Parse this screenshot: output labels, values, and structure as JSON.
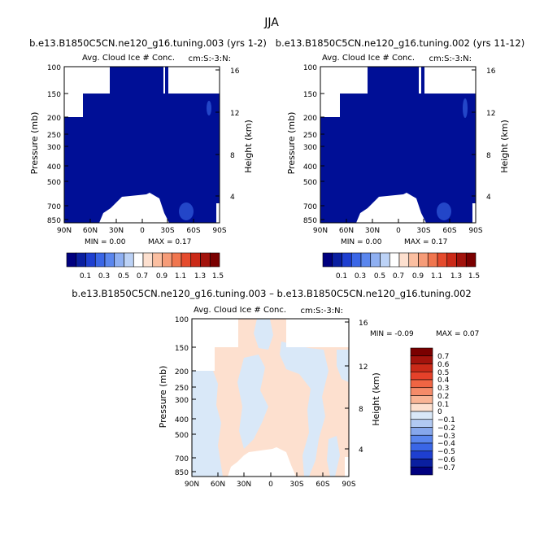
{
  "page_title": "JJA",
  "chart_data": [
    {
      "type": "heatmap",
      "title": "b.e13.B1850C5CN.ne120_g16.tuning.003 (yrs 1-2)",
      "subtitle_left": "Avg. Cloud Ice # Conc.",
      "subtitle_right": "cm:S:-3:N:",
      "xlabel": "",
      "ylabel": "Pressure (mb)",
      "ylabel_right": "Height (km)",
      "x_ticks": [
        "90N",
        "60N",
        "30N",
        "0",
        "30S",
        "60S",
        "90S"
      ],
      "y_ticks": [
        "100",
        "150",
        "200",
        "250",
        "300",
        "400",
        "500",
        "700",
        "850"
      ],
      "y_ticks_right": [
        "16",
        "12",
        "8",
        "4"
      ],
      "xlim": [
        90,
        -90
      ],
      "ylim": [
        100,
        900
      ],
      "min_label": "MIN =    0.00",
      "max_label": "MAX =    0.17",
      "min": 0.0,
      "max": 0.17,
      "fill_value": 0.05,
      "colorbar_labels": [
        "0.1",
        "0.3",
        "0.5",
        "0.7",
        "0.9",
        "1.1",
        "1.3",
        "1.5"
      ]
    },
    {
      "type": "heatmap",
      "title": "b.e13.B1850C5CN.ne120_g16.tuning.002 (yrs 11-12)",
      "subtitle_left": "Avg. Cloud Ice # Conc.",
      "subtitle_right": "cm:S:-3:N:",
      "xlabel": "",
      "ylabel": "Pressure (mb)",
      "ylabel_right": "Height (km)",
      "x_ticks": [
        "90N",
        "60N",
        "30N",
        "0",
        "30S",
        "60S",
        "90S"
      ],
      "y_ticks": [
        "100",
        "150",
        "200",
        "250",
        "300",
        "400",
        "500",
        "700",
        "850"
      ],
      "y_ticks_right": [
        "16",
        "12",
        "8",
        "4"
      ],
      "xlim": [
        90,
        -90
      ],
      "ylim": [
        100,
        900
      ],
      "min_label": "MIN =    0.00",
      "max_label": "MAX =    0.17",
      "min": 0.0,
      "max": 0.17,
      "fill_value": 0.05,
      "colorbar_labels": [
        "0.1",
        "0.3",
        "0.5",
        "0.7",
        "0.9",
        "1.1",
        "1.3",
        "1.5"
      ]
    },
    {
      "type": "heatmap",
      "title": "b.e13.B1850C5CN.ne120_g16.tuning.003 – b.e13.B1850C5CN.ne120_g16.tuning.002",
      "subtitle_left": "Avg. Cloud Ice # Conc.",
      "subtitle_right": "cm:S:-3:N:",
      "xlabel": "",
      "ylabel": "Pressure (mb)",
      "ylabel_right": "Height (km)",
      "x_ticks": [
        "90N",
        "60N",
        "30N",
        "0",
        "30S",
        "60S",
        "90S"
      ],
      "y_ticks": [
        "100",
        "150",
        "200",
        "250",
        "300",
        "400",
        "500",
        "700",
        "850"
      ],
      "y_ticks_right": [
        "16",
        "12",
        "8",
        "4"
      ],
      "xlim": [
        90,
        -90
      ],
      "ylim": [
        100,
        900
      ],
      "min_label": "MIN =   -0.09",
      "max_label": "MAX =    0.07",
      "min": -0.09,
      "max": 0.07,
      "colorbar_labels": [
        "0.7",
        "0.6",
        "0.5",
        "0.4",
        "0.3",
        "0.2",
        "0.1",
        "0",
        "−0.1",
        "−0.2",
        "−0.3",
        "−0.4",
        "−0.5",
        "−0.6",
        "−0.7"
      ]
    }
  ],
  "colors": {
    "abs_scale": [
      "#00007f",
      "#0a1fa0",
      "#1e3fd0",
      "#3a66e6",
      "#5a86ee",
      "#8fb0f2",
      "#bcd2f6",
      "#ffffff",
      "#fde0cf",
      "#fbbfa1",
      "#f69c78",
      "#f0764f",
      "#e54b2d",
      "#cb2a18",
      "#a3130c",
      "#7a0000"
    ],
    "diff_scale": [
      "#7a0000",
      "#a3130c",
      "#cb2a18",
      "#e5412a",
      "#f06543",
      "#f58b69",
      "#f9b495",
      "#fde0cf",
      "#d9e8f8",
      "#b1c9f2",
      "#86a7ec",
      "#5a86ee",
      "#3a66e6",
      "#1e3fd0",
      "#0a1fa0",
      "#00007f"
    ],
    "field_blue": "#000f96",
    "blob_blue": "#2346c8",
    "diff_peach": "#fde0cf",
    "diff_blue": "#d9e8f8"
  }
}
